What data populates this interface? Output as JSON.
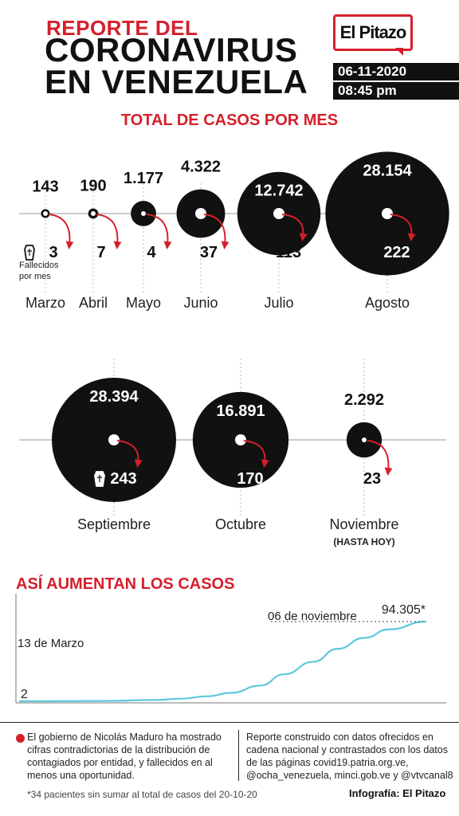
{
  "header": {
    "title_line1": "REPORTE DEL",
    "title_line2": "CORONAVIRUS",
    "title_line3": "EN VENEZUELA",
    "logo": "El Pitazo",
    "date": "06-11-2020",
    "time": "08:45 pm"
  },
  "section_monthly": "TOTAL DE CASOS POR MES",
  "section_cumulative": "ASÍ AUMENTAN LOS CASOS",
  "deaths_label": [
    "Fallecidos",
    "por mes"
  ],
  "chart_data": [
    {
      "type": "bubble",
      "title": "TOTAL DE CASOS POR MES",
      "months": [
        {
          "name": "Marzo",
          "cases": 143,
          "cases_label": "143",
          "deaths": 3,
          "sublabel": ""
        },
        {
          "name": "Abril",
          "cases": 190,
          "cases_label": "190",
          "deaths": 7,
          "sublabel": ""
        },
        {
          "name": "Mayo",
          "cases": 1177,
          "cases_label": "1.177",
          "deaths": 4,
          "sublabel": ""
        },
        {
          "name": "Junio",
          "cases": 4322,
          "cases_label": "4.322",
          "deaths": 37,
          "sublabel": ""
        },
        {
          "name": "Julio",
          "cases": 12742,
          "cases_label": "12.742",
          "deaths": 113,
          "sublabel": ""
        },
        {
          "name": "Agosto",
          "cases": 28154,
          "cases_label": "28.154",
          "deaths": 222,
          "sublabel": ""
        },
        {
          "name": "Septiembre",
          "cases": 28394,
          "cases_label": "28.394",
          "deaths": 243,
          "sublabel": ""
        },
        {
          "name": "Octubre",
          "cases": 16891,
          "cases_label": "16.891",
          "deaths": 170,
          "sublabel": ""
        },
        {
          "name": "Noviembre",
          "cases": 2292,
          "cases_label": "2.292",
          "deaths": 23,
          "sublabel": "(HASTA HOY)"
        }
      ]
    },
    {
      "type": "line",
      "title": "ASÍ AUMENTAN LOS CASOS",
      "start_label": "13 de Marzo",
      "end_label": "06 de noviembre",
      "start_value": 2,
      "start_value_label": "2",
      "end_value": 94305,
      "end_value_label": "94.305*",
      "x": [
        "2020-03-13",
        "2020-04-01",
        "2020-05-01",
        "2020-06-01",
        "2020-06-15",
        "2020-07-01",
        "2020-07-15",
        "2020-08-01",
        "2020-08-15",
        "2020-09-01",
        "2020-09-15",
        "2020-10-01",
        "2020-10-15",
        "2020-11-06"
      ],
      "y": [
        2,
        143,
        333,
        1510,
        3000,
        5832,
        10000,
        18574,
        32000,
        46728,
        62000,
        75122,
        85000,
        94305
      ],
      "ylim": [
        0,
        94305
      ],
      "color": "#5ec8dc"
    }
  ],
  "notes": {
    "left": "El gobierno de Nicolás Maduro ha mostrado cifras contradictorias de la distribución de contagiados por entidad, y fallecidos en al menos una oportunidad.",
    "right": "Reporte construido con datos ofrecidos en cadena nacional y contrastados con los datos de las páginas covid19.patria.org.ve, @ocha_venezuela, minci.gob.ve y @vtvcanal8",
    "footnote": "*34 pacientes sin sumar al total de casos del 20-10-20",
    "credit": "Infografía: El Pitazo"
  },
  "colors": {
    "red": "#d4202c",
    "black": "#111111",
    "line": "#5ec8dc"
  }
}
